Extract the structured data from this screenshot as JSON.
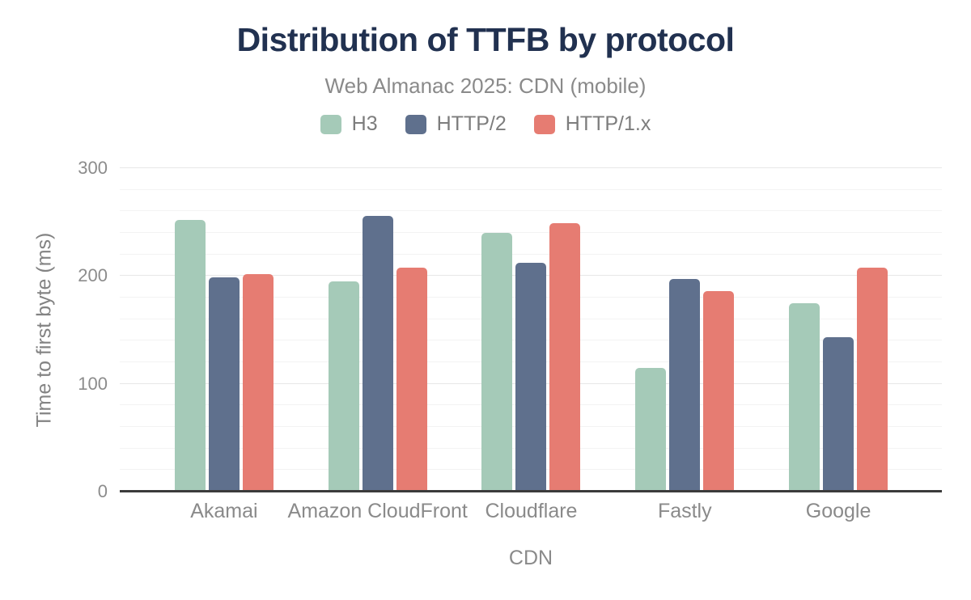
{
  "chart_data": {
    "type": "bar",
    "title": "Distribution of TTFB by protocol",
    "subtitle": "Web Almanac 2025: CDN (mobile)",
    "xlabel": "CDN",
    "ylabel": "Time to first byte (ms)",
    "categories": [
      "Akamai",
      "Amazon CloudFront",
      "Cloudflare",
      "Fastly",
      "Google"
    ],
    "series": [
      {
        "name": "H3",
        "color": "#a5cab8",
        "values": [
          252,
          195,
          240,
          115,
          175
        ]
      },
      {
        "name": "HTTP/2",
        "color": "#5f708d",
        "values": [
          199,
          256,
          212,
          197,
          143
        ]
      },
      {
        "name": "HTTP/1.x",
        "color": "#e67c72",
        "values": [
          202,
          208,
          249,
          186,
          208
        ]
      }
    ],
    "ylim": [
      0,
      300
    ],
    "yticks": [
      0,
      100,
      200,
      300
    ],
    "grid_step": 20,
    "grid": true,
    "legend_position": "top",
    "title_color": "#213150",
    "subtitle_color": "#8a8a8a",
    "axis_line_color": "#3b3b3b"
  }
}
